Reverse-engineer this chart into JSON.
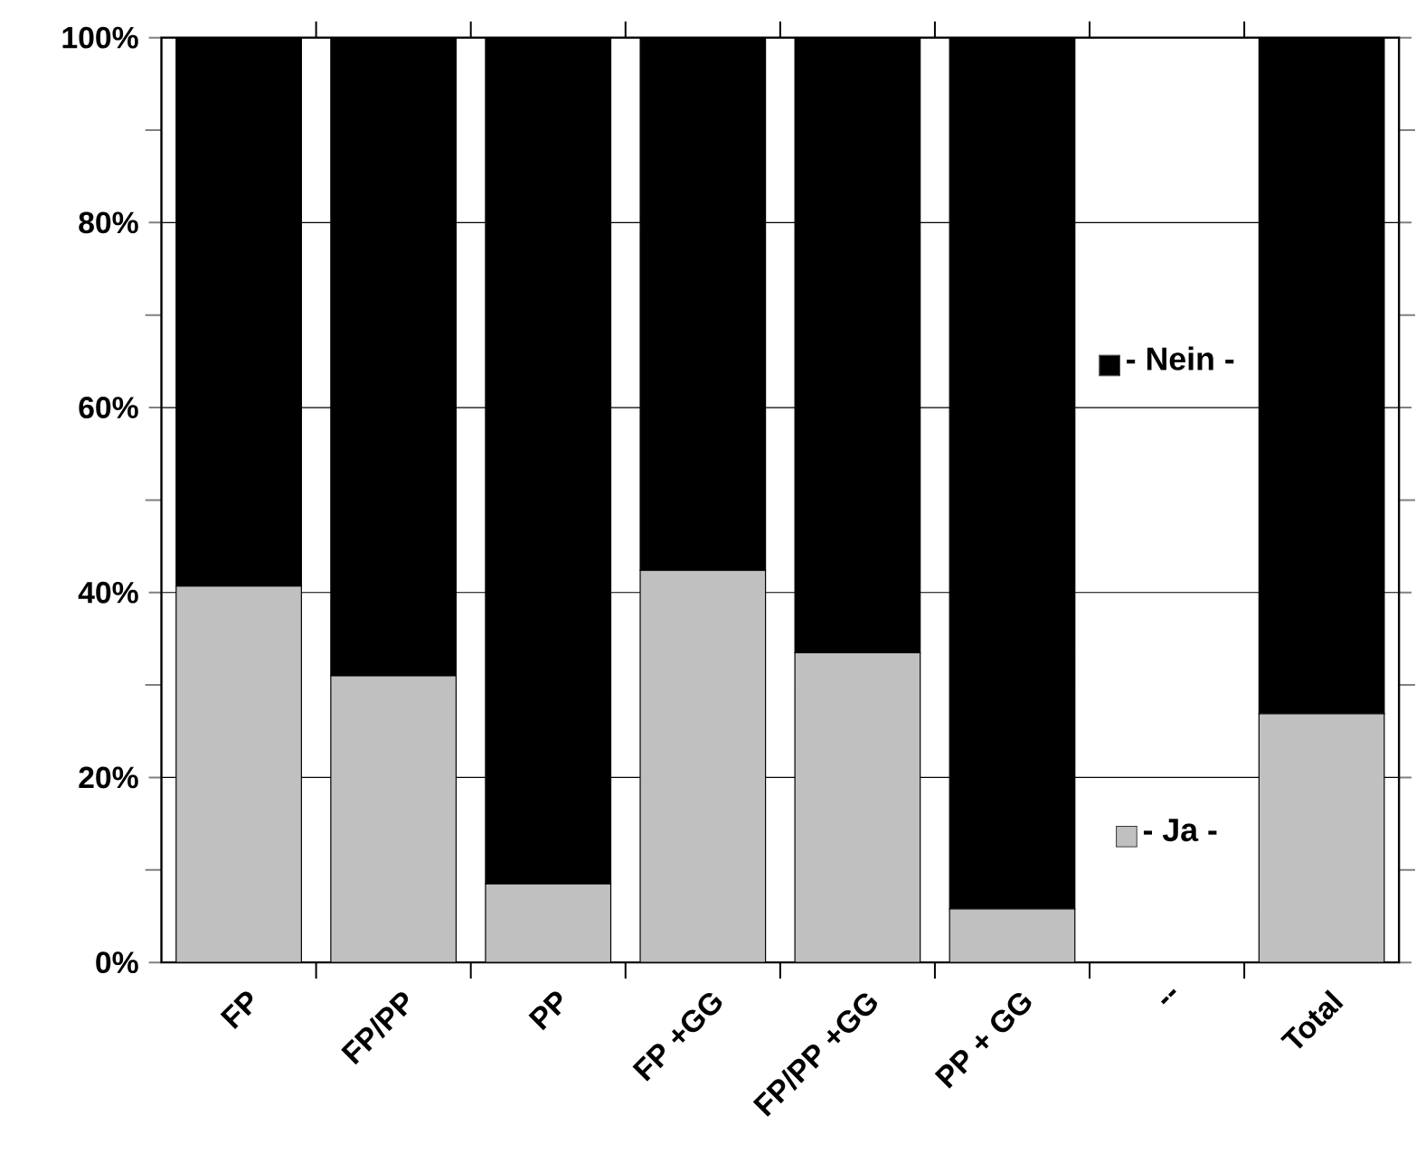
{
  "chart_data": {
    "type": "bar",
    "stacked": true,
    "categories": [
      "FP",
      "FP/PP",
      "PP",
      "FP +GG",
      "FP/PP +GG",
      "PP + GG",
      "--",
      "Total"
    ],
    "series": [
      {
        "name": "- Ja -",
        "color": "#c0c0c0",
        "values": [
          40.7,
          31.0,
          8.5,
          42.4,
          33.5,
          5.8,
          0,
          26.9
        ]
      },
      {
        "name": "- Nein -",
        "color": "#000000",
        "values": [
          59.3,
          69.0,
          91.5,
          57.6,
          66.5,
          94.2,
          0,
          73.1
        ]
      }
    ],
    "ylim": [
      0,
      100
    ],
    "yticks": [
      {
        "value": 0,
        "label": "0%"
      },
      {
        "value": 20,
        "label": "20%"
      },
      {
        "value": 40,
        "label": "40%"
      },
      {
        "value": 60,
        "label": "60%"
      },
      {
        "value": 80,
        "label": "80%"
      },
      {
        "value": 100,
        "label": "100%"
      }
    ],
    "grid": "y",
    "legend": "right"
  }
}
